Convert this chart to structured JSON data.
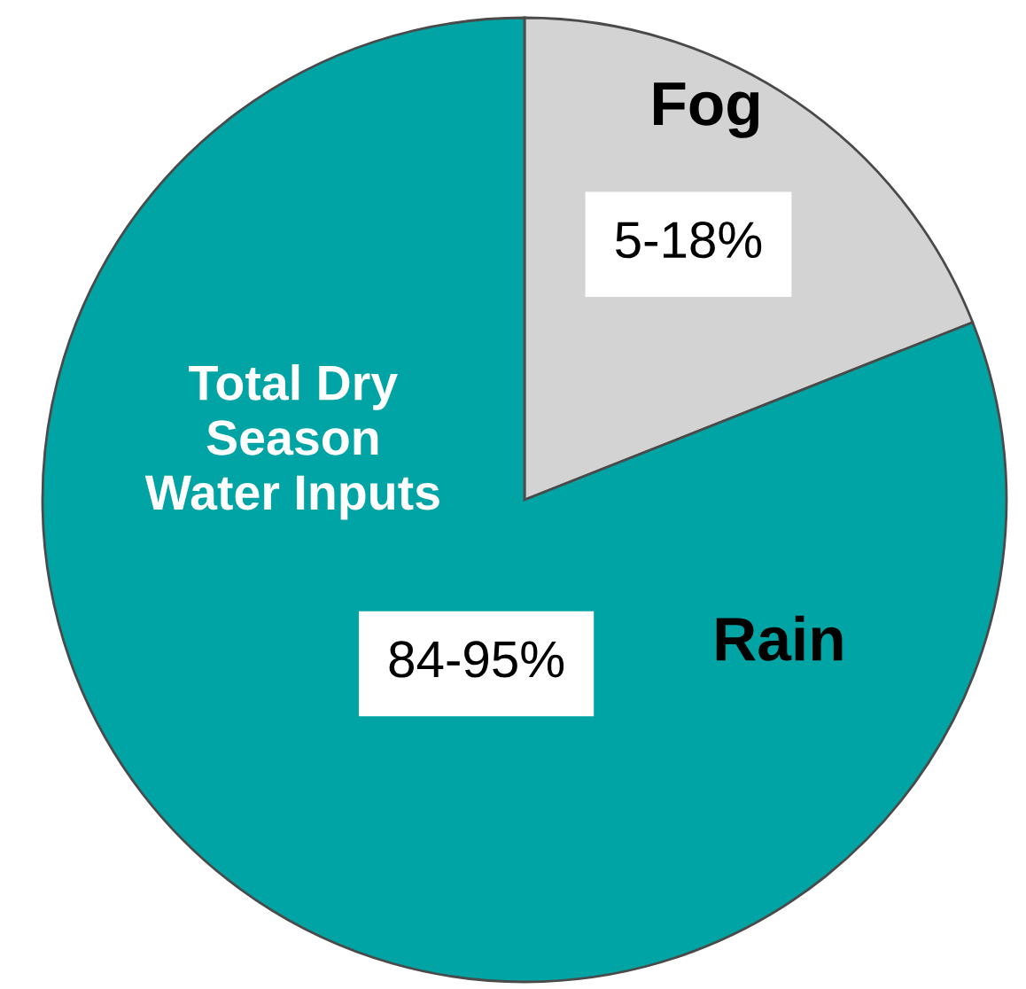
{
  "chart_data": {
    "type": "pie",
    "categories": [
      "Fog",
      "Rain"
    ],
    "values": [
      19,
      81
    ],
    "colors": [
      "#d3d3d3",
      "#00a4a4"
    ],
    "annotations": [
      "5-18%",
      "84-95%",
      "Total Dry\nSeason\nWater Inputs"
    ],
    "legend": false
  }
}
